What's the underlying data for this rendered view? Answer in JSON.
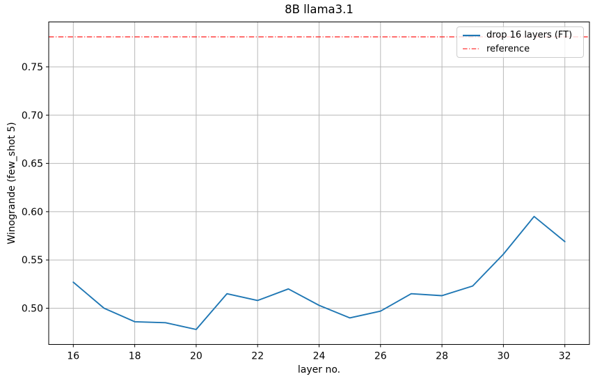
{
  "chart_data": {
    "type": "line",
    "title": "8B llama3.1",
    "xlabel": "layer no.",
    "ylabel": "Winogrande (few_shot 5)",
    "x": [
      16,
      17,
      18,
      19,
      20,
      21,
      22,
      23,
      24,
      25,
      26,
      27,
      28,
      29,
      30,
      31,
      32
    ],
    "series": [
      {
        "name": "drop 16 layers (FT)",
        "color": "#1f77b4",
        "linestyle": "solid",
        "values": [
          0.527,
          0.5,
          0.486,
          0.485,
          0.478,
          0.515,
          0.508,
          0.52,
          0.503,
          0.49,
          0.497,
          0.515,
          0.513,
          0.523,
          0.556,
          0.595,
          0.569
        ]
      }
    ],
    "reference": {
      "name": "reference",
      "color": "#ff0000",
      "linestyle": "dashdot",
      "value": 0.781
    },
    "xlim": [
      15.2,
      32.8
    ],
    "ylim": [
      0.4625,
      0.7965
    ],
    "x_ticks": [
      16,
      18,
      20,
      22,
      24,
      26,
      28,
      30,
      32
    ],
    "x_tick_labels": [
      "16",
      "18",
      "20",
      "22",
      "24",
      "26",
      "28",
      "30",
      "32"
    ],
    "y_ticks": [
      0.5,
      0.55,
      0.6,
      0.65,
      0.7,
      0.75
    ],
    "y_tick_labels": [
      "0.50",
      "0.55",
      "0.60",
      "0.65",
      "0.70",
      "0.75"
    ],
    "grid": true,
    "legend_position": "upper right",
    "colors": {
      "grid": "#b8b8b8",
      "spine": "#000000",
      "text": "#000000",
      "background": "#ffffff"
    }
  }
}
